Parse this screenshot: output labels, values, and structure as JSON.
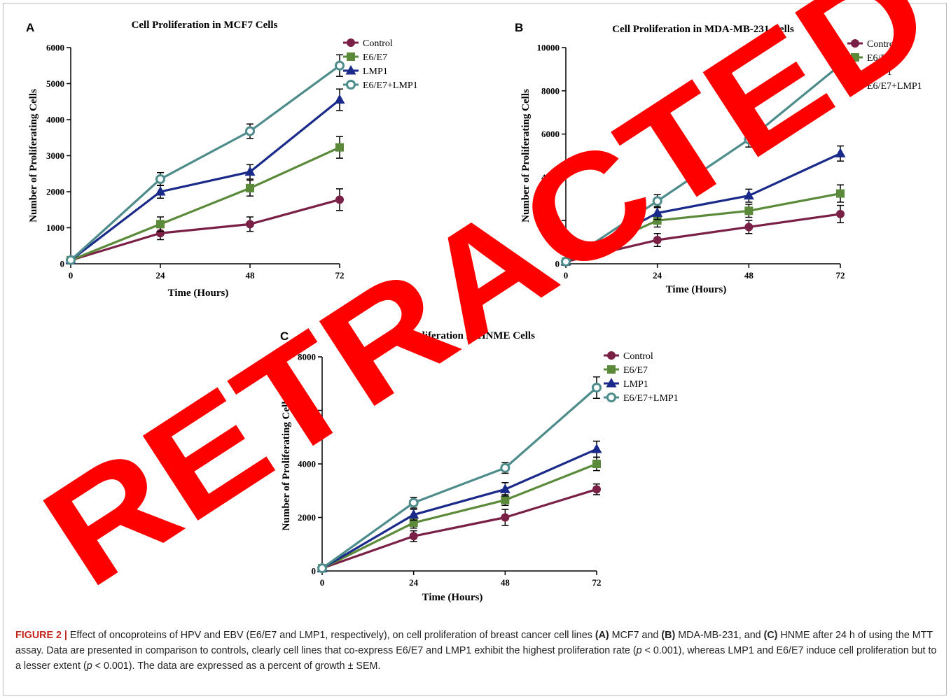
{
  "figure": {
    "caption_label": "FIGURE 2 |",
    "caption_text_1": " Effect of oncoproteins of HPV and EBV (E6/E7 and LMP1, respectively), on cell proliferation of breast cancer cell lines ",
    "caption_ref_a": "(A)",
    "caption_text_2": " MCF7 and ",
    "caption_ref_b": "(B)",
    "caption_text_3": " MDA-MB-231, and ",
    "caption_ref_c": "(C)",
    "caption_text_4": " HNME after 24 h of using the MTT assay. Data are presented in comparison to controls, clearly cell lines that co-express E6/E7 and LMP1 exhibit the highest proliferation rate (",
    "caption_p1": "p",
    "caption_text_5": " < 0.001), whereas LMP1 and E6/E7 induce cell proliferation but to a lesser extent (",
    "caption_p2": "p",
    "caption_text_6": " < 0.001). The data are expressed as a percent of growth ± SEM.",
    "watermark": "RETRACTED",
    "watermark_color": "#ff0000"
  },
  "series_colors": {
    "Control": "#7a1f45",
    "E6/E7": "#5a8a3a",
    "LMP1": "#1a2a8a",
    "E6/E7+LMP1": "#4e8c8c"
  },
  "chart_data": [
    {
      "panel": "A",
      "type": "line",
      "title": "Cell Proliferation in MCF7 Cells",
      "xlabel": "Time (Hours)",
      "ylabel": "Number of Proliferating Cells",
      "x": [
        0,
        24,
        48,
        72
      ],
      "x_ticks": [
        "0",
        "24",
        "48",
        "72"
      ],
      "xlim": [
        0,
        72
      ],
      "ylim": [
        0,
        6000
      ],
      "y_ticks": [
        0,
        1000,
        2000,
        3000,
        4000,
        5000,
        6000
      ],
      "legend": "top-right",
      "series": [
        {
          "name": "Control",
          "marker": "circle",
          "values": [
            100,
            850,
            1100,
            1780
          ],
          "error": [
            0,
            180,
            200,
            300
          ]
        },
        {
          "name": "E6/E7",
          "marker": "square",
          "values": [
            100,
            1100,
            2100,
            3230
          ],
          "error": [
            0,
            200,
            220,
            300
          ]
        },
        {
          "name": "LMP1",
          "marker": "triangle",
          "values": [
            100,
            2000,
            2550,
            4550
          ],
          "error": [
            0,
            180,
            200,
            300
          ]
        },
        {
          "name": "E6/E7+LMP1",
          "marker": "open-circle",
          "values": [
            100,
            2350,
            3680,
            5500
          ],
          "error": [
            0,
            180,
            200,
            300
          ]
        }
      ]
    },
    {
      "panel": "B",
      "type": "line",
      "title": "Cell Proliferation in MDA-MB-231 Cells",
      "xlabel": "Time (Hours)",
      "ylabel": "Number of Proliferating Cells",
      "x": [
        0,
        24,
        48,
        72
      ],
      "x_ticks": [
        "0",
        "24",
        "48",
        "72"
      ],
      "xlim": [
        0,
        72
      ],
      "ylim": [
        0,
        10000
      ],
      "y_ticks": [
        0,
        2000,
        4000,
        6000,
        8000,
        10000
      ],
      "legend": "top-right",
      "series": [
        {
          "name": "Control",
          "marker": "circle",
          "values": [
            100,
            1100,
            1700,
            2300
          ],
          "error": [
            0,
            300,
            300,
            400
          ]
        },
        {
          "name": "E6/E7",
          "marker": "square",
          "values": [
            100,
            2000,
            2450,
            3250
          ],
          "error": [
            0,
            300,
            300,
            400
          ]
        },
        {
          "name": "LMP1",
          "marker": "triangle",
          "values": [
            100,
            2350,
            3150,
            5100
          ],
          "error": [
            0,
            300,
            300,
            350
          ]
        },
        {
          "name": "E6/E7+LMP1",
          "marker": "open-circle",
          "values": [
            100,
            2900,
            5750,
            9200
          ],
          "error": [
            0,
            300,
            350,
            400
          ]
        }
      ]
    },
    {
      "panel": "C",
      "type": "line",
      "title": "Cell Proliferation in HNME Cells",
      "xlabel": "Time (Hours)",
      "ylabel": "Number of Proliferating Cells",
      "x": [
        0,
        24,
        48,
        72
      ],
      "x_ticks": [
        "0",
        "24",
        "48",
        "72"
      ],
      "xlim": [
        0,
        72
      ],
      "ylim": [
        0,
        8000
      ],
      "y_ticks": [
        0,
        2000,
        4000,
        6000,
        8000
      ],
      "legend": "top-right",
      "series": [
        {
          "name": "Control",
          "marker": "circle",
          "values": [
            100,
            1300,
            2000,
            3050
          ],
          "error": [
            0,
            200,
            300,
            200
          ]
        },
        {
          "name": "E6/E7",
          "marker": "square",
          "values": [
            100,
            1800,
            2650,
            4000
          ],
          "error": [
            0,
            200,
            200,
            250
          ]
        },
        {
          "name": "LMP1",
          "marker": "triangle",
          "values": [
            100,
            2100,
            3050,
            4550
          ],
          "error": [
            0,
            200,
            250,
            300
          ]
        },
        {
          "name": "E6/E7+LMP1",
          "marker": "open-circle",
          "values": [
            100,
            2550,
            3850,
            6850
          ],
          "error": [
            0,
            200,
            200,
            400
          ]
        }
      ]
    }
  ]
}
